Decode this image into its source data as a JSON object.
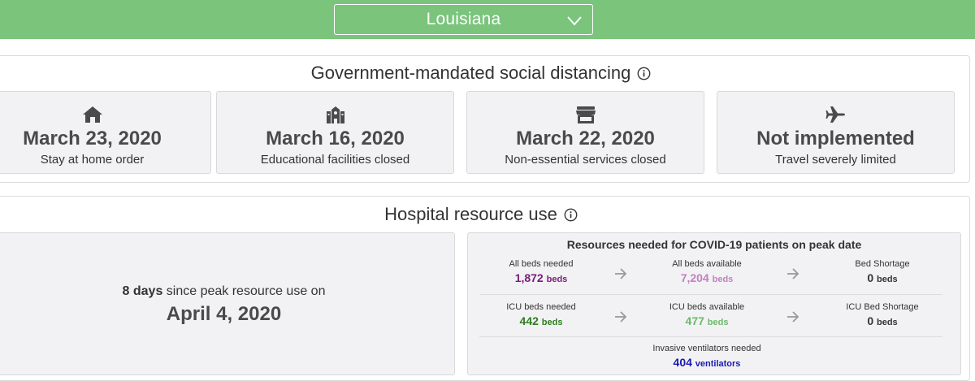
{
  "header": {
    "state_selected": "Louisiana",
    "accent_color": "#7ac47c"
  },
  "distancing": {
    "title": "Government-mandated social distancing",
    "cards": [
      {
        "icon": "home-icon",
        "date": "March 23, 2020",
        "label": "Stay at home order"
      },
      {
        "icon": "school-icon",
        "date": "March 16, 2020",
        "label": "Educational facilities closed"
      },
      {
        "icon": "store-icon",
        "date": "March 22, 2020",
        "label": "Non-essential services closed"
      },
      {
        "icon": "airplane-icon",
        "date": "Not implemented",
        "label": "Travel severely limited"
      }
    ]
  },
  "hospital": {
    "title": "Hospital resource use",
    "peak": {
      "days_bold": "8 days",
      "days_rest": " since peak resource use on",
      "date": "April 4, 2020"
    },
    "resources": {
      "title": "Resources needed for COVID-19 patients on peak date",
      "all_beds_needed": {
        "label": "All beds needed",
        "value": "1,872",
        "unit": "beds",
        "color": "#7b1a78"
      },
      "all_beds_available": {
        "label": "All beds available",
        "value": "7,204",
        "unit": "beds",
        "color": "#c47fc1"
      },
      "bed_shortage": {
        "label": "Bed Shortage",
        "value": "0",
        "unit": "beds",
        "color": "#333333"
      },
      "icu_beds_needed": {
        "label": "ICU beds needed",
        "value": "442",
        "unit": "beds",
        "color": "#2e7d1e"
      },
      "icu_beds_available": {
        "label": "ICU beds available",
        "value": "477",
        "unit": "beds",
        "color": "#6cb86a"
      },
      "icu_bed_shortage": {
        "label": "ICU Bed Shortage",
        "value": "0",
        "unit": "beds",
        "color": "#333333"
      },
      "ventilators": {
        "label": "Invasive ventilators needed",
        "value": "404",
        "unit": "ventilators",
        "color": "#1a1ab0"
      }
    }
  }
}
